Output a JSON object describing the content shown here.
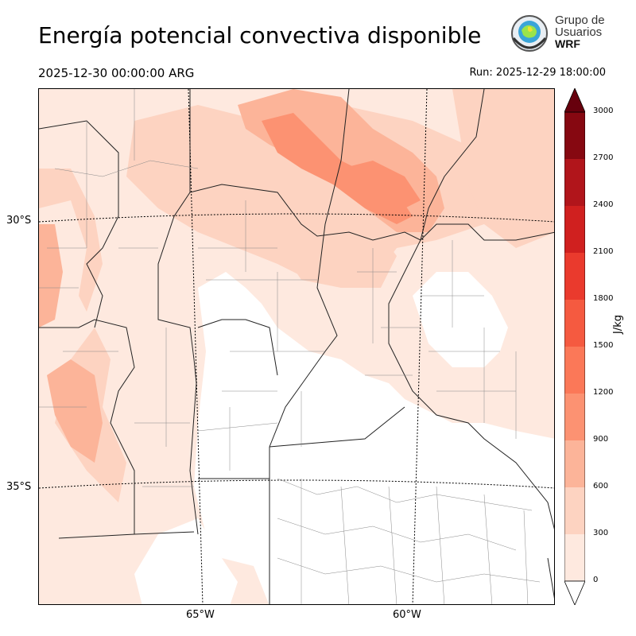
{
  "header": {
    "title": "Energía potencial convectiva disponible",
    "valid_time": "2025-12-30 00:00:00 ARG",
    "run_time": "Run: 2025-12-29 18:00:00"
  },
  "logo": {
    "line1": "Grupo de",
    "line2": "Usuarios",
    "line3": "WRF"
  },
  "map": {
    "lat_labels": [
      "30°S",
      "35°S"
    ],
    "lon_labels": [
      "65°W",
      "60°W"
    ],
    "field_colors": {
      "0-300": "#fee9df",
      "300-600": "#fdd3c1",
      "600-900": "#fcb499",
      "900-1200": "#fc9272",
      "1200-1500": "#fb7858"
    }
  },
  "colorbar": {
    "unit": "J/kg",
    "ticks": [
      "0",
      "300",
      "600",
      "900",
      "1200",
      "1500",
      "1800",
      "2100",
      "2400",
      "2700",
      "3000"
    ],
    "colors": [
      "#fee9df",
      "#fdd3c1",
      "#fcb499",
      "#fc9272",
      "#fb7858",
      "#f55a40",
      "#ea3a2d",
      "#d0201f",
      "#b1151b",
      "#860811"
    ],
    "extend_max_color": "#67000d",
    "extend_min_color": "#ffffff"
  }
}
